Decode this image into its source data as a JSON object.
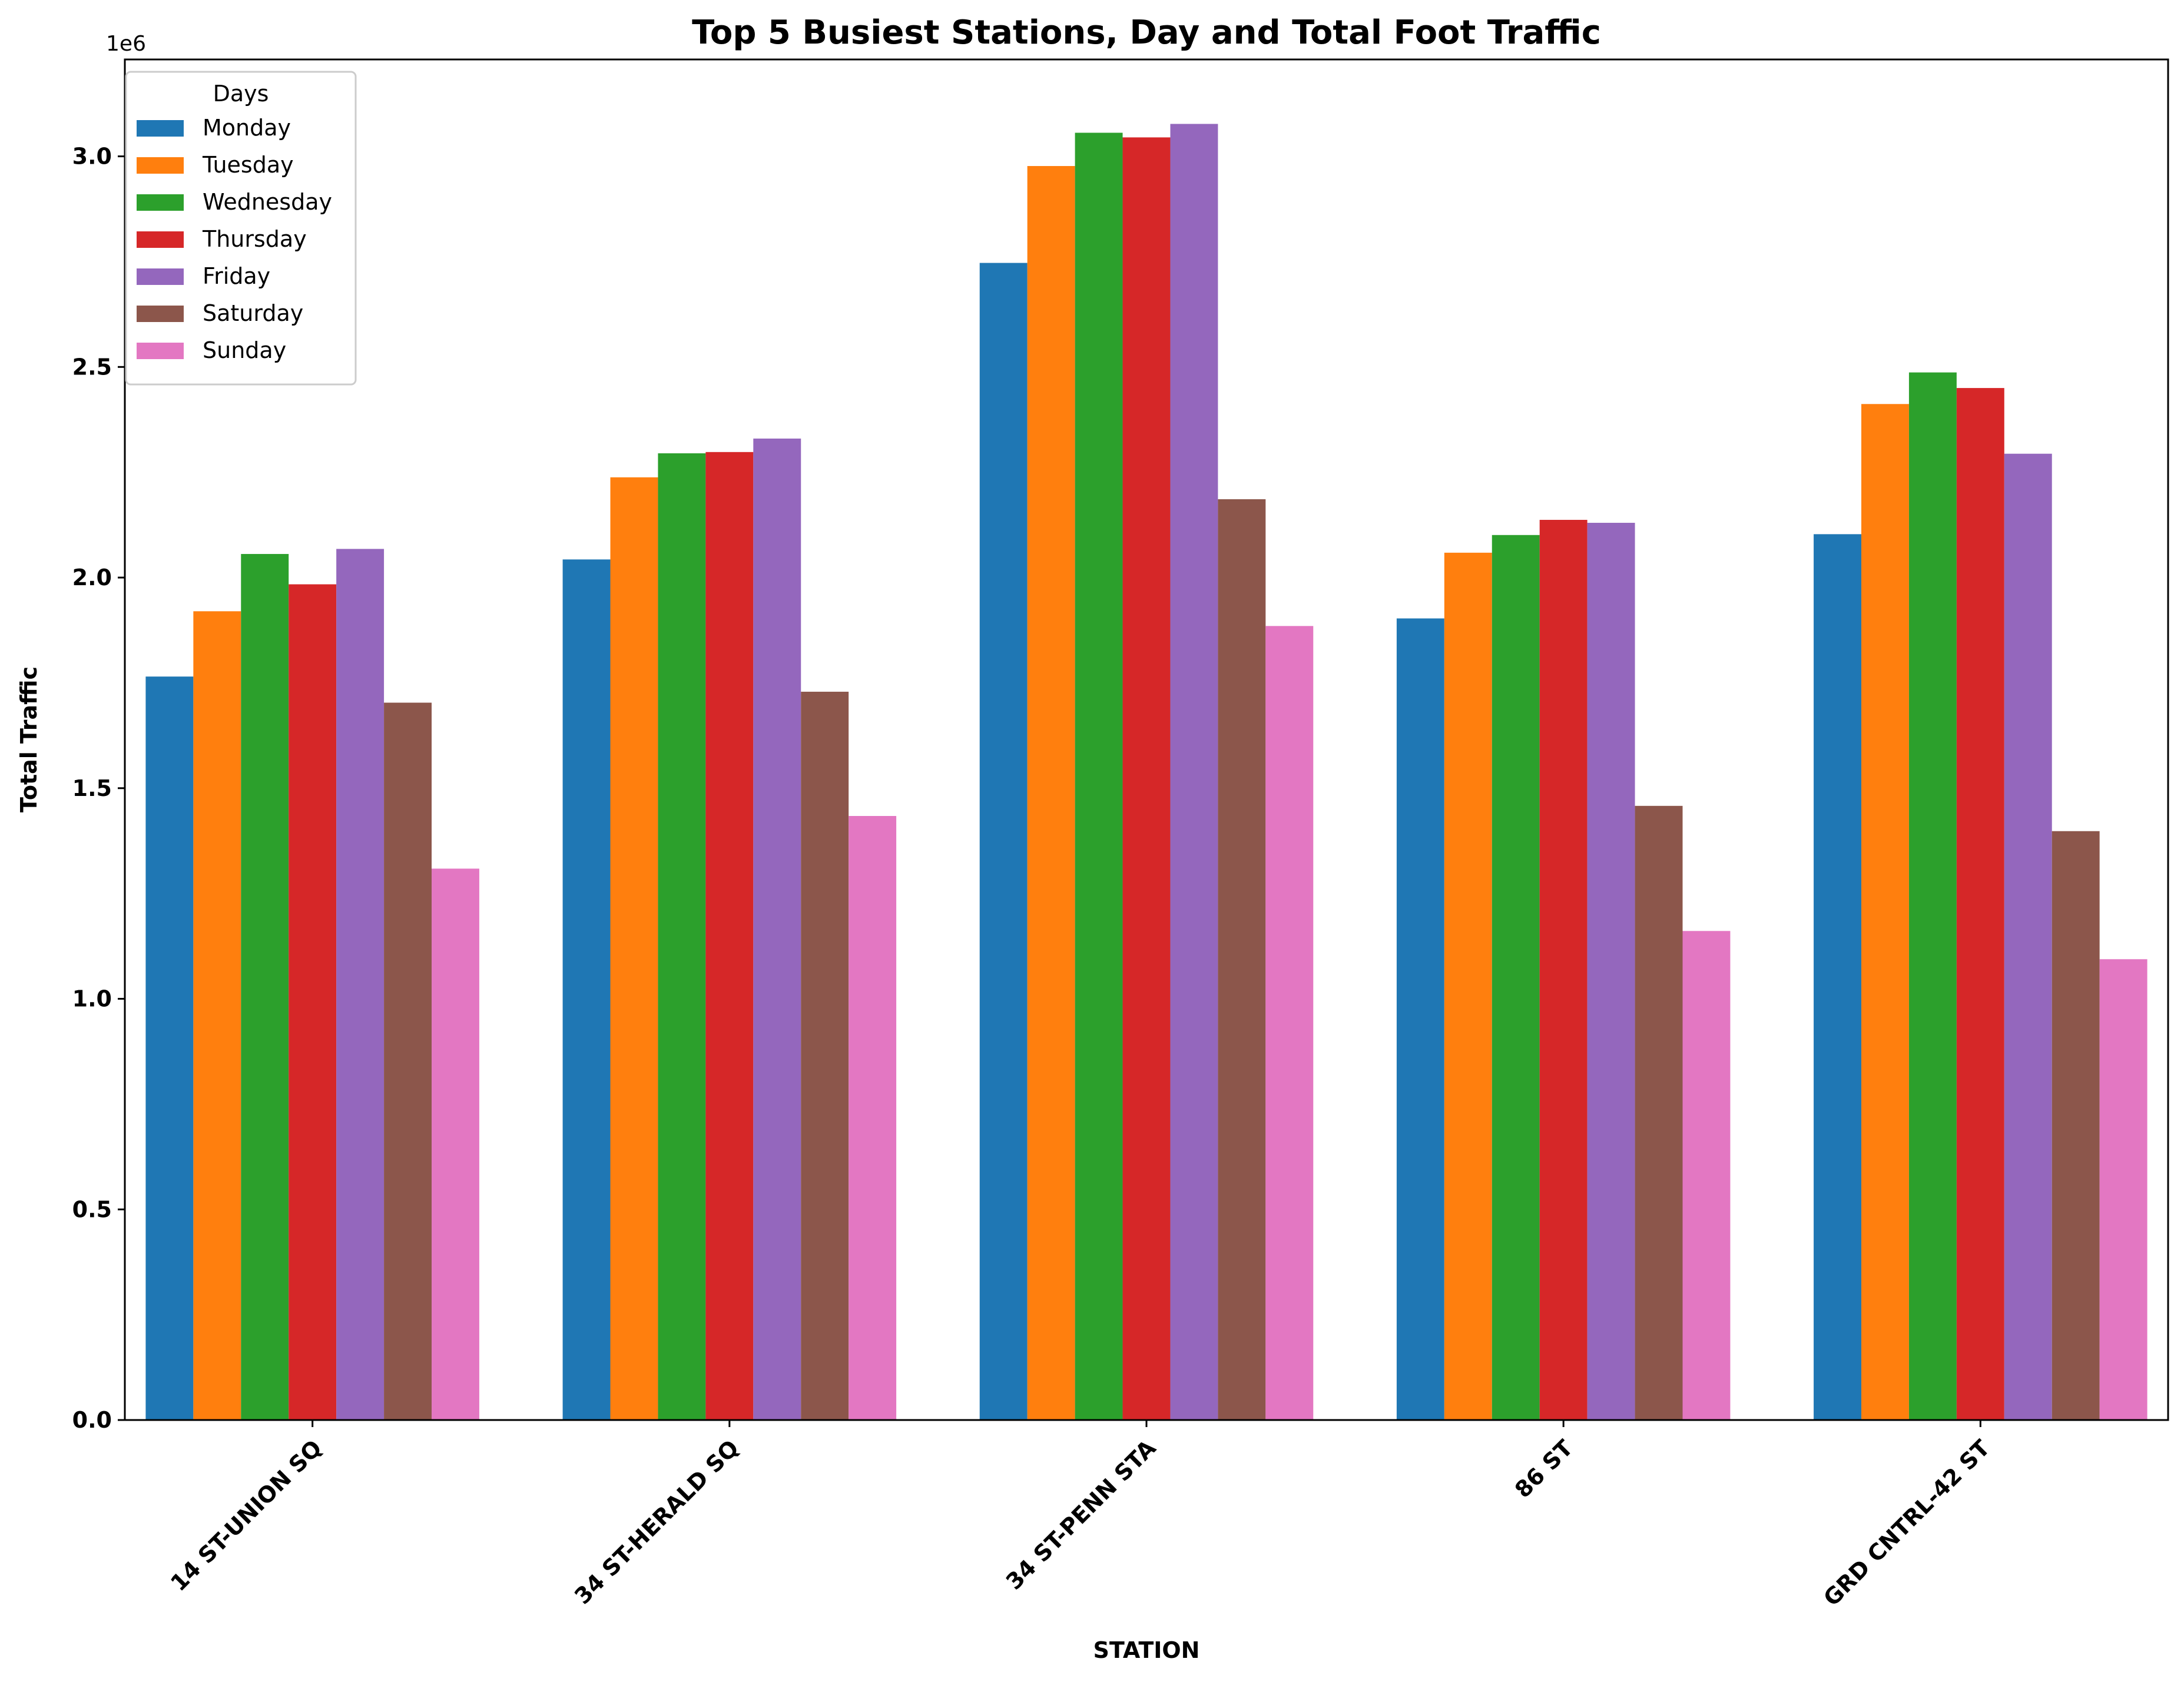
{
  "chart_data": {
    "type": "bar",
    "title": "Top 5 Busiest Stations, Day and Total Foot Traffic",
    "xlabel": "STATION",
    "ylabel": "Total Traffic",
    "y_offset_label": "1e6",
    "ylim": [
      0,
      3.23
    ],
    "y_ticks": [
      0.0,
      0.5,
      1.0,
      1.5,
      2.0,
      2.5,
      3.0
    ],
    "y_tick_labels": [
      "0.0",
      "0.5",
      "1.0",
      "1.5",
      "2.0",
      "2.5",
      "3.0"
    ],
    "categories": [
      "14 ST-UNION SQ",
      "34 ST-HERALD SQ",
      "34 ST-PENN STA",
      "86 ST",
      "GRD CNTRL-42 ST"
    ],
    "legend": {
      "title": "Days",
      "position": "upper-left"
    },
    "grid": false,
    "series": [
      {
        "name": "Monday",
        "color": "#1f77b4",
        "values": [
          1.765,
          2.043,
          2.747,
          1.903,
          2.103
        ]
      },
      {
        "name": "Tuesday",
        "color": "#ff7f0e",
        "values": [
          1.92,
          2.238,
          2.977,
          2.059,
          2.412
        ]
      },
      {
        "name": "Wednesday",
        "color": "#2ca02c",
        "values": [
          2.056,
          2.295,
          3.056,
          2.101,
          2.487
        ]
      },
      {
        "name": "Thursday",
        "color": "#d62728",
        "values": [
          1.984,
          2.298,
          3.045,
          2.137,
          2.45
        ]
      },
      {
        "name": "Friday",
        "color": "#9467bd",
        "values": [
          2.068,
          2.33,
          3.077,
          2.13,
          2.294
        ]
      },
      {
        "name": "Saturday",
        "color": "#8c564b",
        "values": [
          1.703,
          1.729,
          2.186,
          1.458,
          1.398
        ]
      },
      {
        "name": "Sunday",
        "color": "#e377c2",
        "values": [
          1.309,
          1.434,
          1.885,
          1.161,
          1.094
        ]
      }
    ]
  }
}
